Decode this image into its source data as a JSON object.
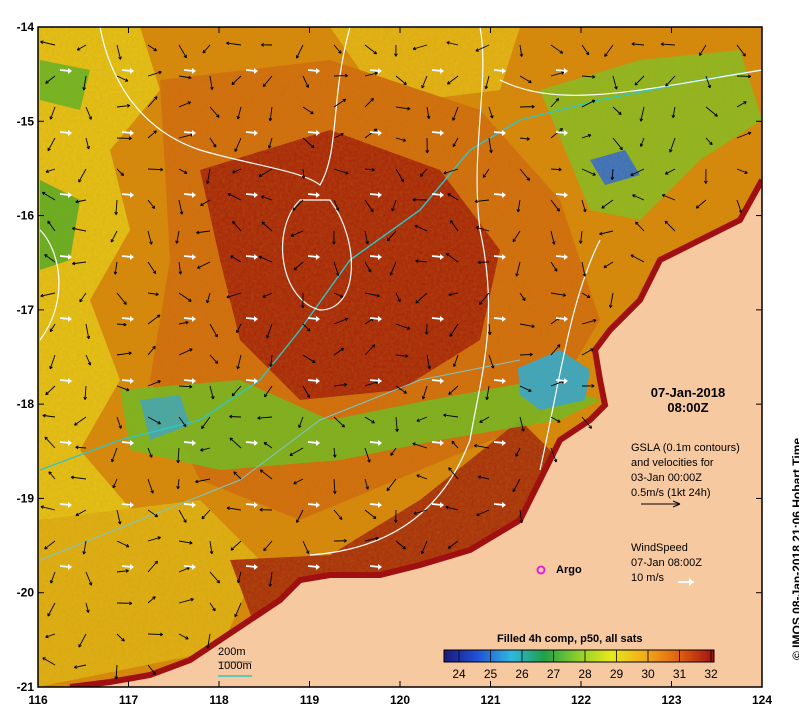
{
  "map": {
    "lon_ticks": [
      "116",
      "117",
      "118",
      "119",
      "120",
      "121",
      "122",
      "123",
      "124"
    ],
    "lat_ticks": [
      "-14",
      "-15",
      "-16",
      "-17",
      "-18",
      "-19",
      "-20",
      "-21"
    ],
    "lon_range": [
      116,
      124
    ],
    "lat_range": [
      -21,
      -14
    ],
    "land_color": "#f7c9a0",
    "colors": {
      "sst_ramp": [
        "#1a1a7a",
        "#1f4fd6",
        "#2fb8e0",
        "#1fa04a",
        "#8fd02a",
        "#e8e81a",
        "#f2a81a",
        "#e06010",
        "#a01010"
      ],
      "gsla_contour": "#ffffff",
      "isobath_200m": "#7a7a7a",
      "isobath_1000m": "#2fc6c6",
      "velocity_arrow": "#000000",
      "wind_arrow": "#ffffff",
      "argo": "#e020e0"
    }
  },
  "overlay": {
    "date": "07-Jan-2018",
    "time": "08:00Z",
    "gsla": {
      "line1": "GSLA (0.1m contours)",
      "line2": "and velocities for",
      "line3": "03-Jan 00:00Z",
      "line4": "0.5m/s (1kt 24h)"
    },
    "wind": {
      "line1": "WindSpeed",
      "line2": "07-Jan 08:00Z",
      "line3": "10 m/s"
    },
    "argo_label": "Argo",
    "argo_position": {
      "lon": 121.6,
      "lat": -19.8
    }
  },
  "colorbar": {
    "title": "Filled 4h comp, p50, all sats",
    "ticks": [
      "24",
      "25",
      "26",
      "27",
      "28",
      "29",
      "30",
      "31",
      "32"
    ]
  },
  "legend": {
    "depth_200": "200m",
    "depth_1000": "1000m"
  },
  "credit": "© IMOS 08-Jan-2018 21:06 Hobart Time"
}
